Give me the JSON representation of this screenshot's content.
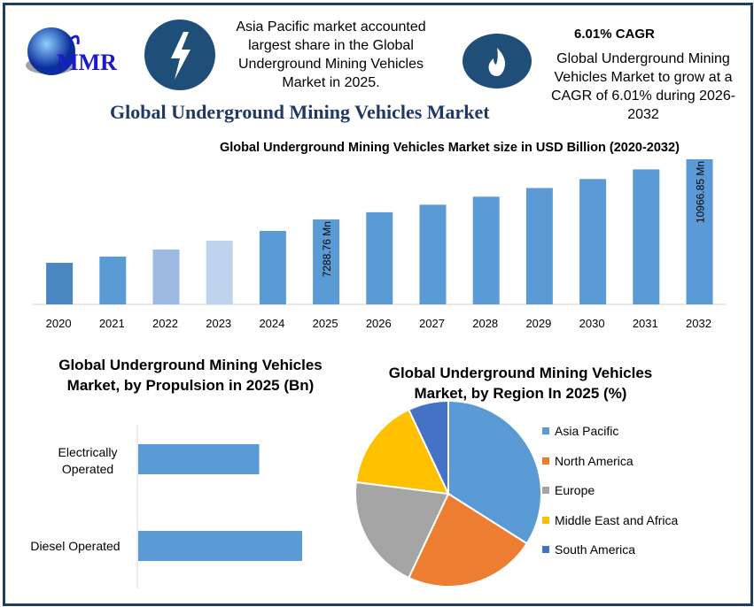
{
  "header": {
    "logo_text": "MMR",
    "highlight_left": "Asia Pacific market accounted largest share in the Global Underground Mining Vehicles Market in 2025.",
    "cagr_title": "6.01% CAGR",
    "cagr_text": "Global Underground Mining Vehicles Market to grow at a CAGR of 6.01% during 2026-2032",
    "main_title": "Global Underground Mining Vehicles Market",
    "icons": [
      "lightning-icon",
      "flame-icon",
      "globe-logo"
    ]
  },
  "chart_data": [
    {
      "type": "bar",
      "title": "Global Underground Mining Vehicles Market size in USD Billion (2020-2032)",
      "categories": [
        "2020",
        "2021",
        "2022",
        "2023",
        "2024",
        "2025",
        "2026",
        "2027",
        "2028",
        "2029",
        "2030",
        "2031",
        "2032"
      ],
      "values": [
        4640,
        5020,
        5450,
        5990,
        6590,
        7288.76,
        7730,
        8190,
        8680,
        9210,
        9760,
        10350,
        10966.85
      ],
      "data_labels": {
        "2025": "7288.76 Mn",
        "2032": "10966.85 Mn"
      },
      "colors": [
        "#4a86bf",
        "#5b9bd5",
        "#9dbbe2",
        "#bdd3ee",
        "#5b9bd5",
        "#5b9bd5",
        "#5b9bd5",
        "#5b9bd5",
        "#5b9bd5",
        "#5b9bd5",
        "#5b9bd5",
        "#5b9bd5",
        "#5b9bd5"
      ],
      "grid": false
    },
    {
      "type": "bar",
      "orientation": "horizontal",
      "title": "Global Underground Mining Vehicles Market, by Propulsion in 2025 (Bn)",
      "categories": [
        "Electrically Operated",
        "Diesel Operated"
      ],
      "values": [
        3.1,
        4.2
      ],
      "color": "#5b9bd5"
    },
    {
      "type": "pie",
      "title": "Global Underground Mining Vehicles Market, by Region In 2025 (%)",
      "categories": [
        "Asia Pacific",
        "North America",
        "Europe",
        "Middle East and Africa",
        "South America"
      ],
      "values": [
        34,
        23,
        20,
        16,
        7
      ],
      "colors": [
        "#5b9bd5",
        "#ed7d31",
        "#a5a5a5",
        "#ffc000",
        "#4472c4"
      ],
      "legend": "right"
    }
  ]
}
